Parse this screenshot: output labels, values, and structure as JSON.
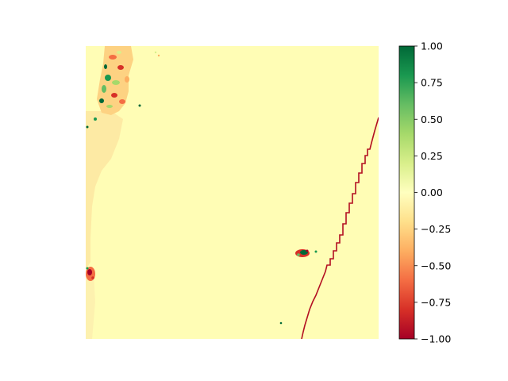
{
  "chart_data": {
    "type": "heatmap",
    "title": "",
    "xlabel": "",
    "ylabel": "",
    "axes_visible": false,
    "colormap": "RdYlGn",
    "colormap_stops": [
      "#a50026",
      "#d73027",
      "#f46d43",
      "#fdae61",
      "#fee08b",
      "#ffffbf",
      "#d9ef8b",
      "#a6d96a",
      "#66bd63",
      "#1a9850",
      "#006837"
    ],
    "background_value": -0.02,
    "colorbar": {
      "range": [
        -1.0,
        1.0
      ],
      "ticks": [
        1.0,
        0.75,
        0.5,
        0.25,
        0.0,
        -0.25,
        -0.5,
        -0.75,
        -1.0
      ],
      "tick_labels": [
        "1.00",
        "0.75",
        "0.50",
        "0.25",
        "0.00",
        "−0.25",
        "−0.50",
        "−0.75",
        "−1.00"
      ]
    },
    "features": [
      {
        "name": "left-edge-negative-band",
        "value": -0.2
      },
      {
        "name": "upper-left-mixed-patch",
        "value_range": [
          -0.9,
          0.9
        ]
      },
      {
        "name": "lower-left-negative-spot",
        "value": -0.85
      },
      {
        "name": "center-right-mixed-spot",
        "value_range": [
          -0.9,
          0.9
        ]
      },
      {
        "name": "diagonal-boundary-line",
        "value": -1.0
      }
    ]
  }
}
